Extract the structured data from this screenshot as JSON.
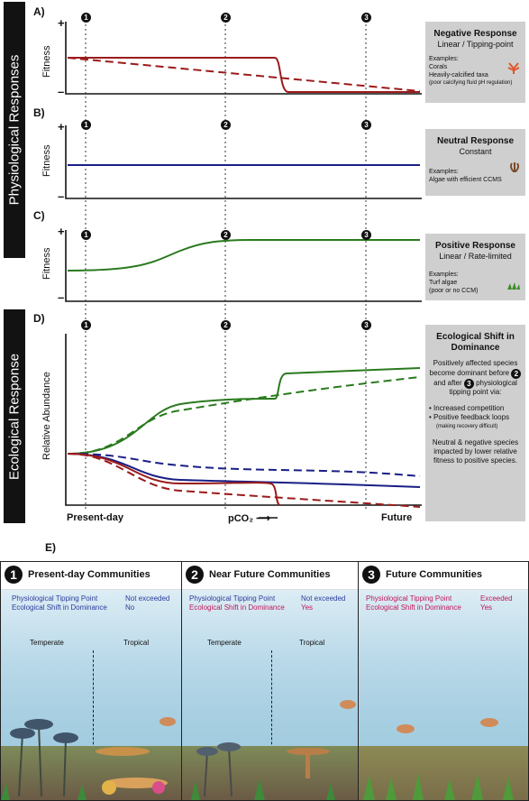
{
  "sidebar": {
    "physiological": "Physiological Responses",
    "ecological": "Ecological Response"
  },
  "panels": {
    "A": {
      "letter": "A)",
      "ylabel": "Fitness",
      "plus": "+",
      "minus": "–",
      "box_title": "Negative Response",
      "box_subtitle": "Linear / Tipping-point",
      "examples_label": "Examples:",
      "examples": [
        "Corals",
        "Heavily-calcified taxa",
        "(poor calcifying fluid pH regulation)"
      ]
    },
    "B": {
      "letter": "B)",
      "ylabel": "Fitness",
      "plus": "+",
      "minus": "–",
      "box_title": "Neutral Response",
      "box_subtitle": "Constant",
      "examples_label": "Examples:",
      "examples": [
        "Algae with efficient CCMS"
      ]
    },
    "C": {
      "letter": "C)",
      "ylabel": "Fitness",
      "plus": "+",
      "minus": "–",
      "box_title": "Positive Response",
      "box_subtitle": "Linear / Rate-limited",
      "examples_label": "Examples:",
      "examples": [
        "Turf algae",
        "(poor or no CCM)"
      ]
    },
    "D": {
      "letter": "D)",
      "ylabel": "Relative Abundance",
      "box_title": "Ecological Shift in Dominance",
      "box_text1": "Positively affected species become dominant before",
      "box_text1b": "and after",
      "box_text1c": "physiological tipping point via:",
      "bullets": [
        "Increased competition",
        "Positive feedback loops"
      ],
      "bullet_note": "(making recovery difficult)",
      "box_text2": "Neutral & negative species impacted by lower relative fitness to positive species."
    },
    "E": {
      "letter": "E)"
    }
  },
  "markers": [
    "1",
    "2",
    "3"
  ],
  "axis": {
    "left": "Present-day",
    "middle": "pCO₂ ⟶",
    "right": "Future"
  },
  "colors": {
    "negative": "#9b1b1b",
    "neutral": "#1a1f86",
    "positive": "#2a7a1e",
    "sidebar": "#121212",
    "box": "#cfcfcf"
  },
  "communities": [
    {
      "num": "1",
      "title": "Present-day Communities",
      "rows": [
        {
          "label": "Physiological Tipping Point",
          "value": "Not exceeded",
          "color": "#2c3d9c"
        },
        {
          "label": "Ecological Shift in Dominance",
          "value": "No",
          "color": "#2c3d9c"
        }
      ],
      "zones": [
        "Temperate",
        "Tropical"
      ]
    },
    {
      "num": "2",
      "title": "Near Future Communities",
      "rows": [
        {
          "label": "Physiological Tipping Point",
          "value": "Not exceeded",
          "color": "#2c3d9c"
        },
        {
          "label": "Ecological Shift in Dominance",
          "value": "Yes",
          "color": "#c2185b"
        }
      ],
      "zones": [
        "Temperate",
        "Tropical"
      ]
    },
    {
      "num": "3",
      "title": "Future Communities",
      "rows": [
        {
          "label": "Physiological Tipping Point",
          "value": "Exceeded",
          "color": "#c2185b"
        },
        {
          "label": "Ecological Shift in Dominance",
          "value": "Yes",
          "color": "#c2185b"
        }
      ],
      "zones": []
    }
  ]
}
